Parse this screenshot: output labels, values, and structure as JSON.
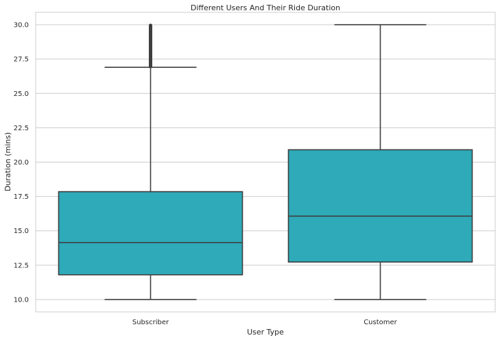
{
  "chart_data": {
    "type": "box",
    "title": "Different Users And Their Ride Duration",
    "xlabel": "User Type",
    "ylabel": "Duration (mins)",
    "ylim": [
      9.1,
      30.9
    ],
    "yticks": [
      10.0,
      12.5,
      15.0,
      17.5,
      20.0,
      22.5,
      25.0,
      27.5,
      30.0
    ],
    "ytick_labels": [
      "10.0",
      "12.5",
      "15.0",
      "17.5",
      "20.0",
      "22.5",
      "25.0",
      "27.5",
      "30.0"
    ],
    "grid": true,
    "categories": [
      "Subscriber",
      "Customer"
    ],
    "boxes": [
      {
        "category": "Subscriber",
        "whisker_low": 10.0,
        "q1": 11.8,
        "median": 14.15,
        "q3": 17.85,
        "whisker_high": 26.9,
        "outliers_range": [
          26.9,
          30.0
        ]
      },
      {
        "category": "Customer",
        "whisker_low": 10.0,
        "q1": 12.73,
        "median": 16.07,
        "q3": 20.9,
        "whisker_high": 30.0,
        "outliers_range": null
      }
    ],
    "colors": {
      "box_fill": "#2eaab9",
      "box_edge": "#3f3f3f",
      "grid": "#cccccc",
      "frame": "#cccccc",
      "text": "#262626"
    }
  }
}
